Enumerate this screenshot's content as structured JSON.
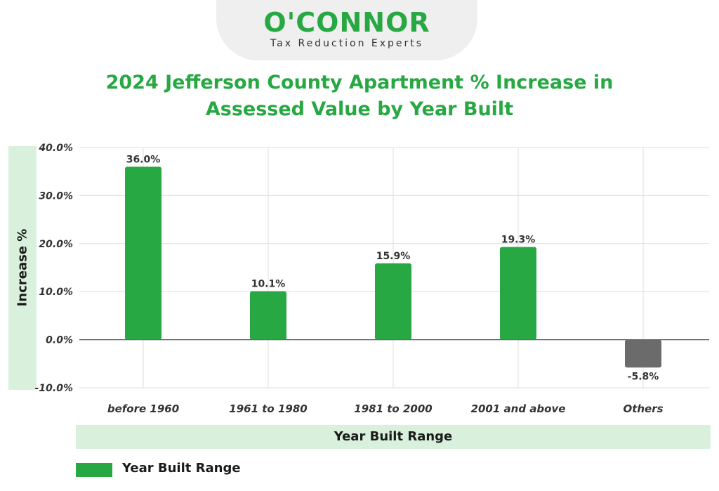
{
  "logo": {
    "name": "O'CONNOR",
    "tagline": "Tax Reduction Experts"
  },
  "colors": {
    "accent_green": "#27a843",
    "band_green": "#d9f1dc",
    "negative_gray": "#6b6b6b"
  },
  "chart_data": {
    "type": "bar",
    "title": "2024 Jefferson County Apartment % Increase in Assessed Value by Year Built",
    "xlabel": "Year Built Range",
    "ylabel": "Increase %",
    "categories": [
      "before 1960",
      "1961 to 1980",
      "1981 to 2000",
      "2001 and above",
      "Others"
    ],
    "series": [
      {
        "name": "Year Built Range",
        "values": [
          36.0,
          10.1,
          15.9,
          19.3,
          -5.8
        ],
        "data_labels": [
          "36.0%",
          "10.1%",
          "15.9%",
          "19.3%",
          "-5.8%"
        ]
      }
    ],
    "ylim": [
      -10,
      40
    ],
    "yticks": [
      40,
      30,
      20,
      10,
      0,
      -10
    ],
    "ytick_labels": [
      "40.0%",
      "30.0%",
      "20.0%",
      "10.0%",
      "0.0%",
      "-10.0%"
    ],
    "grid": true,
    "legend": "bottom-left"
  }
}
